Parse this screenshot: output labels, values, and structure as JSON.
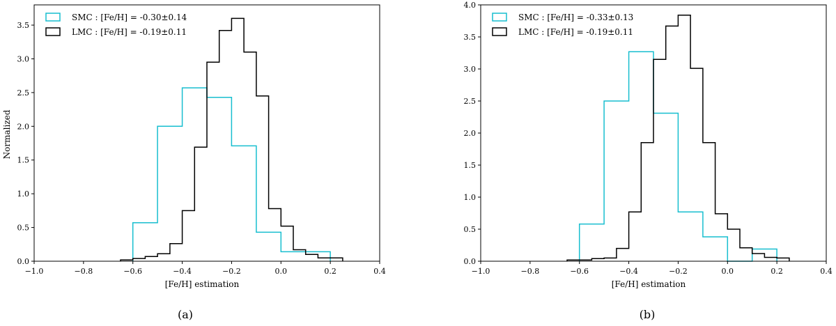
{
  "chart_data": [
    {
      "type": "histogram",
      "panel": "(a)",
      "xlabel": "[Fe/H] estimation",
      "ylabel": "Normalized",
      "xlim": [
        -1.0,
        0.4
      ],
      "ylim": [
        0,
        3.8
      ],
      "xticks": [
        -1.0,
        -0.8,
        -0.6,
        -0.4,
        -0.2,
        0.0,
        0.2,
        0.4
      ],
      "xtick_labels": [
        "−1.0",
        "−0.8",
        "−0.6",
        "−0.4",
        "−0.2",
        "0.0",
        "0.2",
        "0.4"
      ],
      "yticks": [
        0.0,
        0.5,
        1.0,
        1.5,
        2.0,
        2.5,
        3.0,
        3.5
      ],
      "ytick_labels": [
        "0.0",
        "0.5",
        "1.0",
        "1.5",
        "2.0",
        "2.5",
        "3.0",
        "3.5"
      ],
      "legend_position": "top-left",
      "series": [
        {
          "name": "SMC : [Fe/H] = -0.30±0.14",
          "color": "#17becf",
          "edges": [
            -0.6,
            -0.5,
            -0.4,
            -0.3,
            -0.2,
            -0.1,
            0.0,
            0.1,
            0.2
          ],
          "values": [
            0.57,
            2.0,
            2.57,
            2.43,
            1.71,
            0.43,
            0.14,
            0.14
          ]
        },
        {
          "name": "LMC : [Fe/H] = -0.19±0.11",
          "color": "#000000",
          "edges": [
            -0.65,
            -0.6,
            -0.55,
            -0.5,
            -0.45,
            -0.4,
            -0.35,
            -0.3,
            -0.25,
            -0.2,
            -0.15,
            -0.1,
            -0.05,
            0.0,
            0.05,
            0.1,
            0.15,
            0.2,
            0.25
          ],
          "values": [
            0.02,
            0.04,
            0.07,
            0.11,
            0.26,
            0.75,
            1.69,
            2.95,
            3.42,
            3.6,
            3.1,
            2.45,
            0.78,
            0.52,
            0.17,
            0.1,
            0.05,
            0.05
          ]
        }
      ]
    },
    {
      "type": "histogram",
      "panel": "(b)",
      "xlabel": "[Fe/H] estimation",
      "ylabel": "",
      "xlim": [
        -1.0,
        0.4
      ],
      "ylim": [
        0,
        4.0
      ],
      "xticks": [
        -1.0,
        -0.8,
        -0.6,
        -0.4,
        -0.2,
        0.0,
        0.2,
        0.4
      ],
      "xtick_labels": [
        "−1.0",
        "−0.8",
        "−0.6",
        "−0.4",
        "−0.2",
        "0.0",
        "0.2",
        "0.4"
      ],
      "yticks": [
        0.0,
        0.5,
        1.0,
        1.5,
        2.0,
        2.5,
        3.0,
        3.5,
        4.0
      ],
      "ytick_labels": [
        "0.0",
        "0.5",
        "1.0",
        "1.5",
        "2.0",
        "2.5",
        "3.0",
        "3.5",
        "4.0"
      ],
      "legend_position": "top-left",
      "series": [
        {
          "name": "SMC : [Fe/H] = -0.33±0.13",
          "color": "#17becf",
          "edges": [
            -0.6,
            -0.5,
            -0.4,
            -0.3,
            -0.2,
            -0.1,
            0.0,
            0.1,
            0.2
          ],
          "values": [
            0.58,
            2.5,
            3.27,
            2.31,
            0.77,
            0.38,
            0.0,
            0.19
          ]
        },
        {
          "name": "LMC : [Fe/H] = -0.19±0.11",
          "color": "#000000",
          "edges": [
            -0.65,
            -0.6,
            -0.55,
            -0.5,
            -0.45,
            -0.4,
            -0.35,
            -0.3,
            -0.25,
            -0.2,
            -0.15,
            -0.1,
            -0.05,
            0.0,
            0.05,
            0.1,
            0.15,
            0.2,
            0.25
          ],
          "values": [
            0.02,
            0.02,
            0.04,
            0.05,
            0.2,
            0.77,
            1.85,
            3.15,
            3.67,
            3.84,
            3.01,
            1.85,
            0.74,
            0.5,
            0.21,
            0.12,
            0.06,
            0.05
          ]
        }
      ]
    }
  ]
}
